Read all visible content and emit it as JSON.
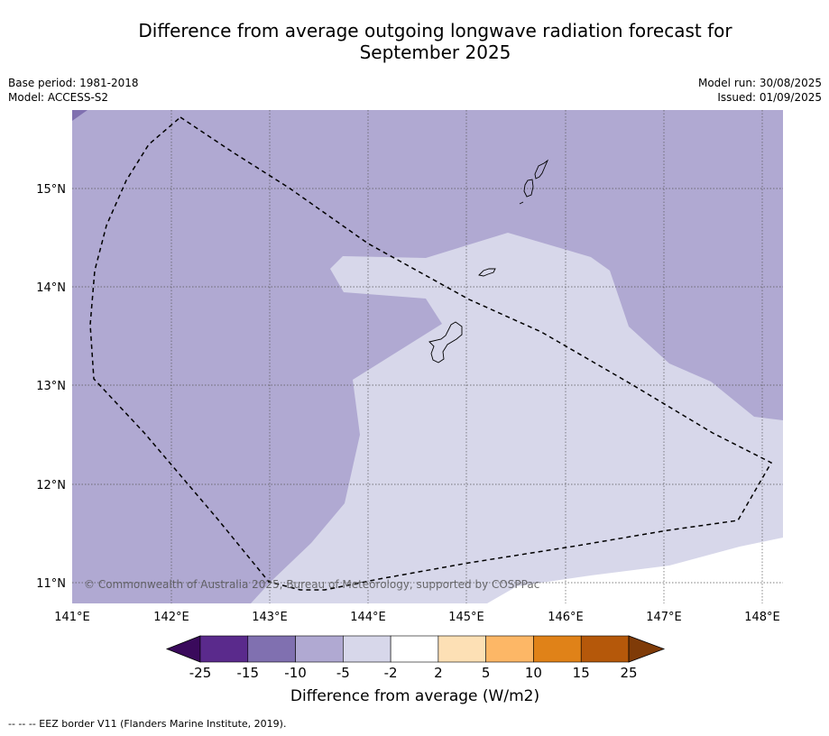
{
  "title_lines": [
    "Difference from average outgoing longwave radiation forecast for",
    "September 2025"
  ],
  "meta_left": {
    "base_period": "Base period: 1981-2018",
    "model": "Model: ACCESS-S2"
  },
  "meta_right": {
    "model_run": "Model run: 30/08/2025",
    "issued": "Issued: 01/09/2025"
  },
  "map": {
    "lon_range": [
      141,
      148.2
    ],
    "lat_range": [
      10.8,
      15.8
    ],
    "lon_ticks": [
      {
        "value": 141,
        "label": "141°E"
      },
      {
        "value": 142,
        "label": "142°E"
      },
      {
        "value": 143,
        "label": "143°E"
      },
      {
        "value": 144,
        "label": "144°E"
      },
      {
        "value": 145,
        "label": "145°E"
      },
      {
        "value": 146,
        "label": "146°E"
      },
      {
        "value": 147,
        "label": "147°E"
      },
      {
        "value": 148,
        "label": "148°E"
      }
    ],
    "lat_ticks": [
      {
        "value": 15,
        "label": "15°N"
      },
      {
        "value": 14,
        "label": "14°N"
      },
      {
        "value": 13,
        "label": "13°N"
      },
      {
        "value": 12,
        "label": "12°N"
      },
      {
        "value": 11,
        "label": "11°N"
      }
    ],
    "copyright": "© Commonwealth of Australia 2025, Bureau of Meteorology, supported by COSPPac"
  },
  "colorbar": {
    "title": "Difference from average (W/m2)",
    "bins": [
      {
        "from": -25,
        "to": -15,
        "color": "#5a2a8c"
      },
      {
        "from": -15,
        "to": -10,
        "color": "#8070b0"
      },
      {
        "from": -10,
        "to": -5,
        "color": "#b0a9d2"
      },
      {
        "from": -5,
        "to": -2,
        "color": "#d7d7ea"
      },
      {
        "from": -2,
        "to": 2,
        "color": "#ffffff"
      },
      {
        "from": 2,
        "to": 5,
        "color": "#fde0b5"
      },
      {
        "from": 5,
        "to": 10,
        "color": "#fdb766"
      },
      {
        "from": 10,
        "to": 15,
        "color": "#e08218"
      },
      {
        "from": 15,
        "to": 25,
        "color": "#b5580a"
      }
    ],
    "under_color": "#3a0a5c",
    "over_color": "#7f3b08",
    "labels": [
      "-25",
      "-15",
      "-10",
      "-5",
      "-2",
      "2",
      "5",
      "10",
      "15",
      "25"
    ]
  },
  "footnote": "--  --  -- EEZ border V11 (Flanders Marine Institute, 2019)."
}
